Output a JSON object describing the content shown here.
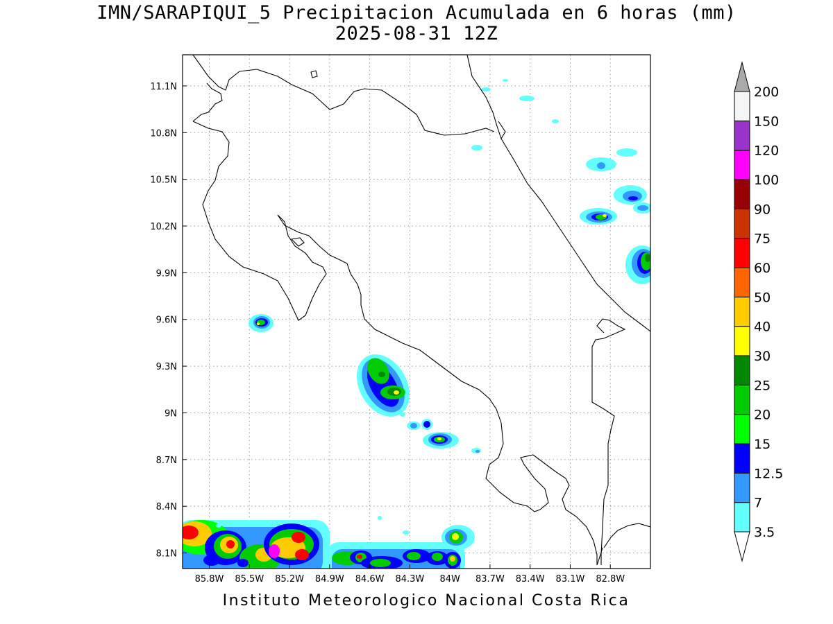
{
  "header": {
    "title_line1": "IMN/SARAPIQUI_5 Precipitacion Acumulada en 6 horas (mm)",
    "title_line2": "2025-08-31 12Z"
  },
  "footer": {
    "credit": "Instituto Meteorologico Nacional Costa Rica"
  },
  "map": {
    "lon_range": [
      -86.0,
      -82.5
    ],
    "lat_range": [
      8.0,
      11.3
    ],
    "grid": true,
    "lon_ticks": [
      {
        "value": -85.8,
        "label": "85.8W"
      },
      {
        "value": -85.5,
        "label": "85.5W"
      },
      {
        "value": -85.2,
        "label": "85.2W"
      },
      {
        "value": -84.9,
        "label": "84.9W"
      },
      {
        "value": -84.6,
        "label": "84.6W"
      },
      {
        "value": -84.3,
        "label": "84.3W"
      },
      {
        "value": -84.0,
        "label": "84W"
      },
      {
        "value": -83.7,
        "label": "83.7W"
      },
      {
        "value": -83.4,
        "label": "83.4W"
      },
      {
        "value": -83.1,
        "label": "83.1W"
      },
      {
        "value": -82.8,
        "label": "82.8W"
      }
    ],
    "lat_ticks": [
      {
        "value": 11.1,
        "label": "11.1N"
      },
      {
        "value": 10.8,
        "label": "10.8N"
      },
      {
        "value": 10.5,
        "label": "10.5N"
      },
      {
        "value": 10.2,
        "label": "10.2N"
      },
      {
        "value": 9.9,
        "label": "9.9N"
      },
      {
        "value": 9.6,
        "label": "9.6N"
      },
      {
        "value": 9.3,
        "label": "9.3N"
      },
      {
        "value": 9.0,
        "label": "9N"
      },
      {
        "value": 8.7,
        "label": "8.7N"
      },
      {
        "value": 8.4,
        "label": "8.4N"
      },
      {
        "value": 8.1,
        "label": "8.1N"
      }
    ]
  },
  "colorbar": {
    "levels": [
      {
        "label": "3.5",
        "color": "#63ffff"
      },
      {
        "label": "7",
        "color": "#3399ff"
      },
      {
        "label": "12.5",
        "color": "#0000ff"
      },
      {
        "label": "15",
        "color": "#00ff00"
      },
      {
        "label": "20",
        "color": "#00cc00"
      },
      {
        "label": "25",
        "color": "#008800"
      },
      {
        "label": "30",
        "color": "#ffff00"
      },
      {
        "label": "40",
        "color": "#ffcc00"
      },
      {
        "label": "50",
        "color": "#ff6600"
      },
      {
        "label": "60",
        "color": "#ff0000"
      },
      {
        "label": "75",
        "color": "#cc3300"
      },
      {
        "label": "90",
        "color": "#990000"
      },
      {
        "label": "100",
        "color": "#ff00ff"
      },
      {
        "label": "120",
        "color": "#9933cc"
      },
      {
        "label": "150",
        "color": "#f5f5f5"
      },
      {
        "label": "200",
        "color": "#aaaaaa"
      }
    ]
  }
}
